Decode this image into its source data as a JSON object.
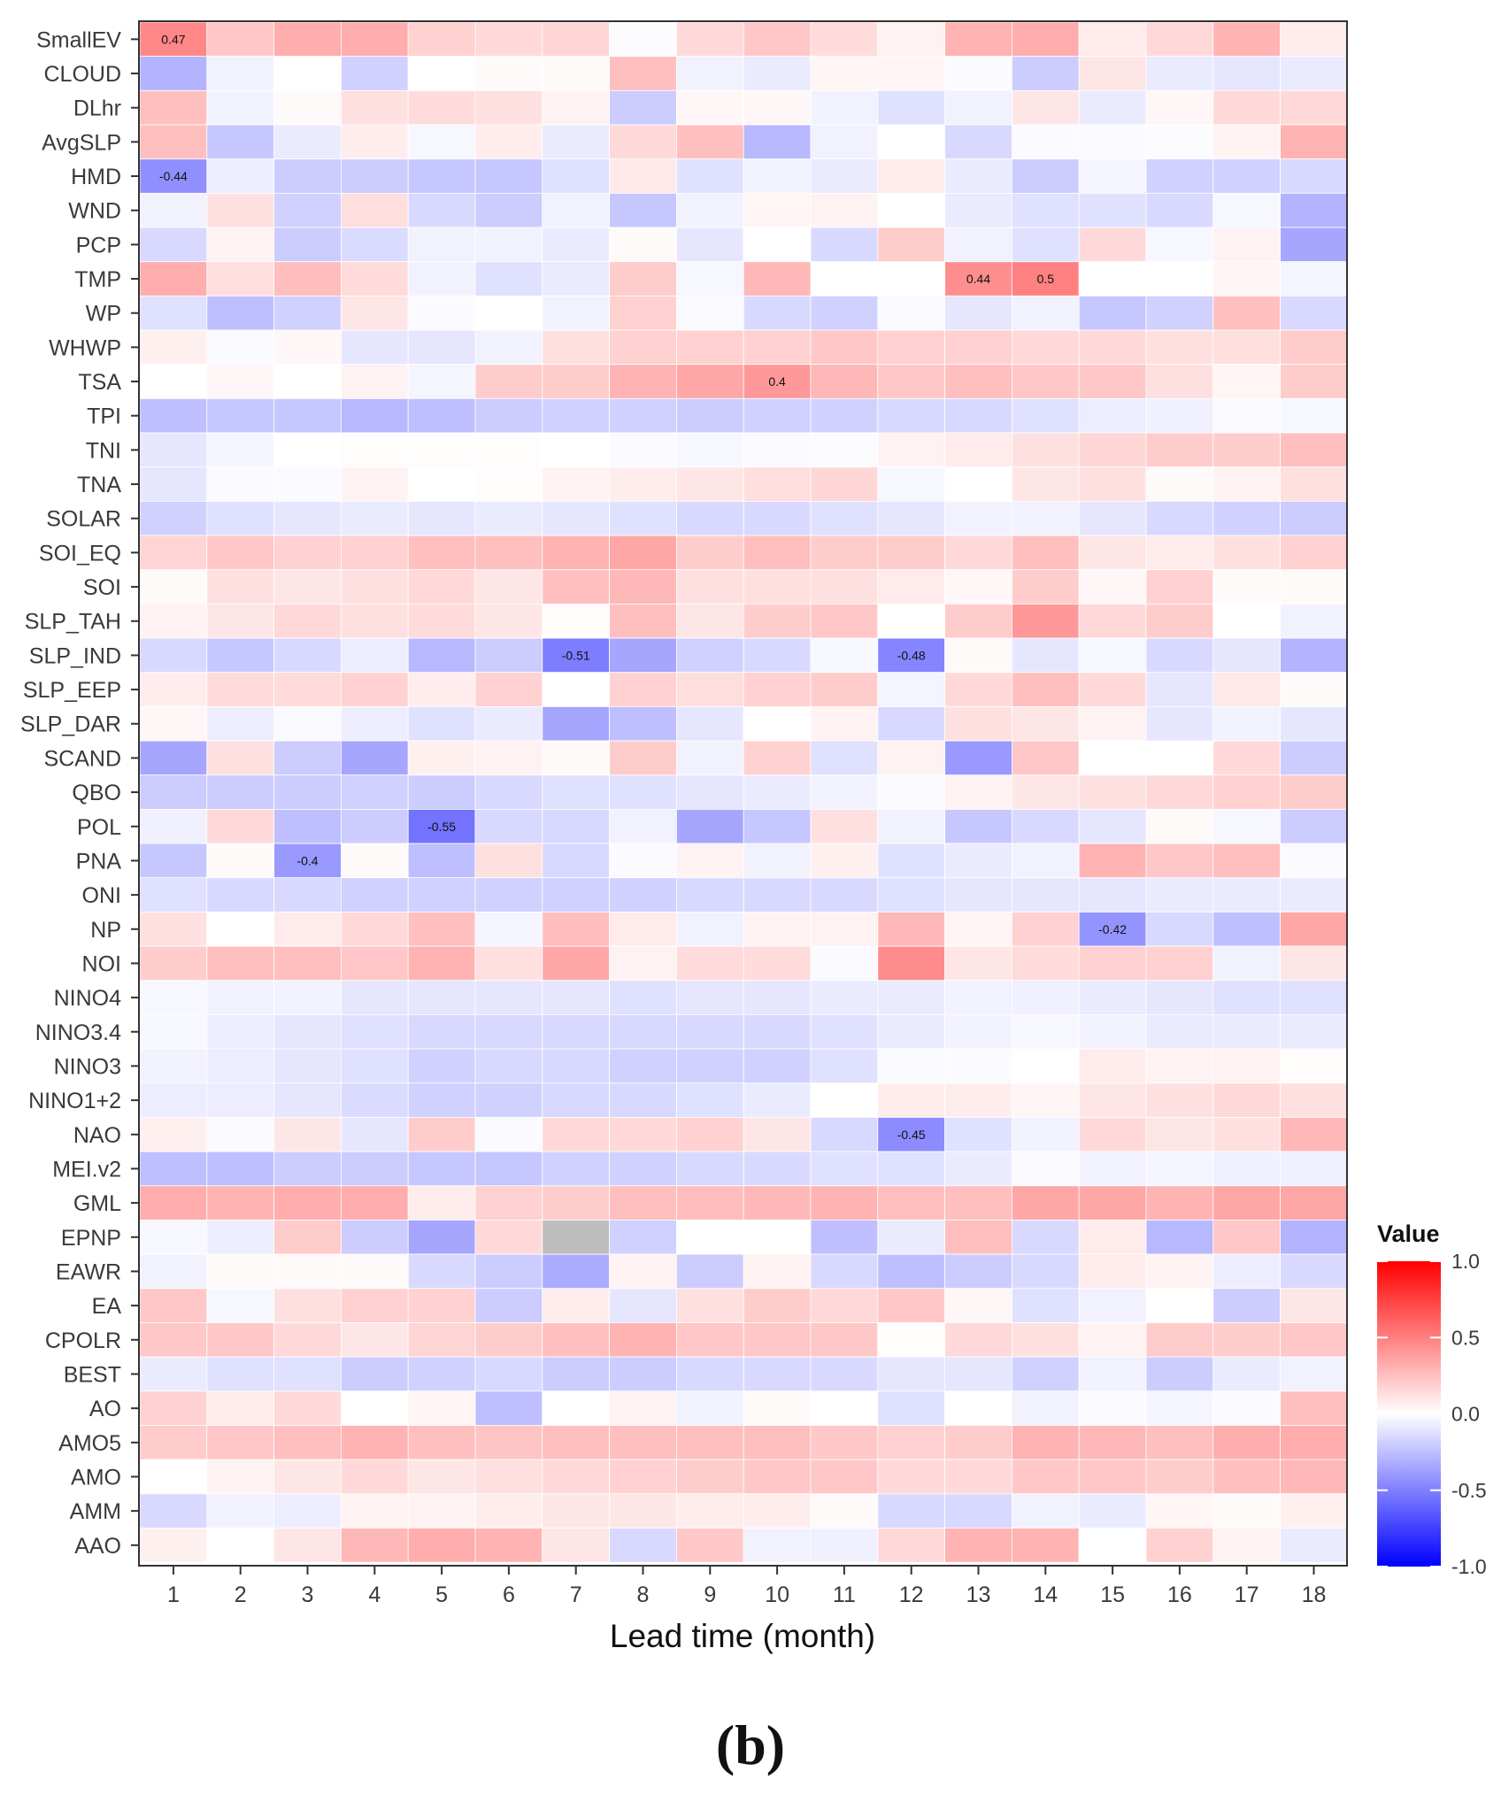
{
  "panel_label": "(b)",
  "chart_data": {
    "type": "heatmap",
    "title": "",
    "xlabel": "Lead time (month)",
    "ylabel": "",
    "x": [
      1,
      2,
      3,
      4,
      5,
      6,
      7,
      8,
      9,
      10,
      11,
      12,
      13,
      14,
      15,
      16,
      17,
      18
    ],
    "rows": [
      "SmallEV",
      "CLOUD",
      "DLhr",
      "AvgSLP",
      "HMD",
      "WND",
      "PCP",
      "TMP",
      "WP",
      "WHWP",
      "TSA",
      "TPI",
      "TNI",
      "TNA",
      "SOLAR",
      "SOI_EQ",
      "SOI",
      "SLP_TAH",
      "SLP_IND",
      "SLP_EEP",
      "SLP_DAR",
      "SCAND",
      "QBO",
      "POL",
      "PNA",
      "ONI",
      "NP",
      "NOI",
      "NINO4",
      "NINO3.4",
      "NINO3",
      "NINO1+2",
      "NAO",
      "MEI.v2",
      "GML",
      "EPNP",
      "EAWR",
      "EA",
      "CPOLR",
      "BEST",
      "AO",
      "AMO5",
      "AMO",
      "AMM",
      "AAO"
    ],
    "values": [
      [
        0.47,
        0.22,
        0.32,
        0.32,
        0.18,
        0.15,
        0.16,
        -0.01,
        0.15,
        0.22,
        0.14,
        0.05,
        0.3,
        0.32,
        0.08,
        0.15,
        0.3,
        0.07
      ],
      [
        -0.3,
        -0.05,
        0.0,
        -0.18,
        0.0,
        0.02,
        0.02,
        0.25,
        -0.05,
        -0.08,
        0.04,
        0.04,
        -0.02,
        -0.2,
        0.1,
        -0.08,
        -0.1,
        -0.08
      ],
      [
        0.25,
        -0.05,
        0.02,
        0.12,
        0.14,
        0.12,
        0.05,
        -0.2,
        0.03,
        0.03,
        -0.05,
        -0.12,
        -0.05,
        0.1,
        -0.08,
        0.03,
        0.15,
        0.15
      ],
      [
        0.25,
        -0.22,
        -0.08,
        0.07,
        -0.03,
        0.07,
        -0.08,
        0.15,
        0.25,
        -0.28,
        -0.05,
        0.0,
        -0.15,
        -0.02,
        -0.02,
        -0.01,
        0.05,
        0.3
      ],
      [
        -0.44,
        -0.07,
        -0.2,
        -0.2,
        -0.22,
        -0.22,
        -0.12,
        0.09,
        -0.12,
        -0.05,
        -0.08,
        0.08,
        -0.08,
        -0.2,
        -0.04,
        -0.18,
        -0.18,
        -0.15
      ],
      [
        -0.05,
        0.12,
        -0.18,
        0.13,
        -0.15,
        -0.2,
        -0.05,
        -0.22,
        -0.05,
        0.04,
        0.05,
        0.0,
        -0.08,
        -0.12,
        -0.12,
        -0.15,
        -0.03,
        -0.3
      ],
      [
        -0.15,
        0.05,
        -0.2,
        -0.14,
        -0.05,
        -0.05,
        -0.08,
        0.02,
        -0.1,
        0.0,
        -0.15,
        0.2,
        -0.05,
        -0.12,
        0.15,
        -0.03,
        0.05,
        -0.35
      ],
      [
        0.32,
        0.13,
        0.26,
        0.14,
        -0.05,
        -0.12,
        -0.08,
        0.2,
        -0.03,
        0.28,
        0.0,
        0.0,
        0.44,
        0.5,
        0.0,
        0.0,
        0.04,
        -0.04
      ],
      [
        -0.12,
        -0.25,
        -0.18,
        0.1,
        -0.02,
        0.0,
        -0.05,
        0.18,
        -0.02,
        -0.15,
        -0.18,
        -0.02,
        -0.1,
        -0.05,
        -0.22,
        -0.18,
        0.25,
        -0.15
      ],
      [
        0.06,
        -0.02,
        0.03,
        -0.1,
        -0.1,
        -0.05,
        0.12,
        0.18,
        0.18,
        0.18,
        0.22,
        0.18,
        0.18,
        0.15,
        0.15,
        0.12,
        0.13,
        0.2
      ],
      [
        0.0,
        0.03,
        0.0,
        0.05,
        -0.04,
        0.2,
        0.2,
        0.3,
        0.35,
        0.4,
        0.28,
        0.22,
        0.25,
        0.22,
        0.22,
        0.12,
        0.04,
        0.2
      ],
      [
        -0.25,
        -0.22,
        -0.22,
        -0.28,
        -0.25,
        -0.2,
        -0.18,
        -0.18,
        -0.2,
        -0.18,
        -0.18,
        -0.15,
        -0.15,
        -0.12,
        -0.07,
        -0.06,
        -0.02,
        -0.03
      ],
      [
        -0.1,
        -0.04,
        0.0,
        0.01,
        0.01,
        0.01,
        0.0,
        -0.02,
        -0.03,
        -0.02,
        -0.01,
        0.05,
        0.08,
        0.12,
        0.16,
        0.2,
        0.2,
        0.25
      ],
      [
        -0.1,
        -0.02,
        -0.02,
        0.05,
        0.0,
        0.01,
        0.05,
        0.07,
        0.1,
        0.13,
        0.16,
        -0.03,
        0.0,
        0.1,
        0.12,
        0.02,
        0.05,
        0.12
      ],
      [
        -0.18,
        -0.12,
        -0.1,
        -0.08,
        -0.1,
        -0.08,
        -0.1,
        -0.12,
        -0.15,
        -0.15,
        -0.12,
        -0.1,
        -0.05,
        -0.05,
        -0.1,
        -0.15,
        -0.18,
        -0.2
      ],
      [
        0.17,
        0.22,
        0.18,
        0.18,
        0.25,
        0.25,
        0.3,
        0.35,
        0.2,
        0.25,
        0.2,
        0.2,
        0.15,
        0.25,
        0.1,
        0.08,
        0.12,
        0.18
      ],
      [
        0.02,
        0.12,
        0.1,
        0.12,
        0.15,
        0.1,
        0.25,
        0.28,
        0.12,
        0.12,
        0.12,
        0.08,
        0.03,
        0.2,
        0.03,
        0.18,
        0.02,
        0.02
      ],
      [
        0.05,
        0.1,
        0.15,
        0.12,
        0.14,
        0.1,
        0.01,
        0.25,
        0.1,
        0.2,
        0.22,
        0.0,
        0.2,
        0.4,
        0.15,
        0.2,
        0.0,
        -0.05
      ],
      [
        -0.15,
        -0.22,
        -0.15,
        -0.07,
        -0.28,
        -0.2,
        -0.51,
        -0.35,
        -0.18,
        -0.15,
        -0.03,
        -0.48,
        0.02,
        -0.1,
        -0.03,
        -0.15,
        -0.1,
        -0.3
      ],
      [
        0.07,
        0.14,
        0.14,
        0.18,
        0.07,
        0.18,
        0.0,
        0.18,
        0.13,
        0.18,
        0.2,
        -0.04,
        0.15,
        0.25,
        0.15,
        -0.1,
        0.09,
        0.02
      ],
      [
        0.03,
        -0.07,
        -0.02,
        -0.07,
        -0.12,
        -0.08,
        -0.35,
        -0.25,
        -0.1,
        0.0,
        0.05,
        -0.15,
        0.12,
        0.1,
        0.05,
        -0.1,
        -0.05,
        -0.1
      ],
      [
        -0.35,
        0.12,
        -0.2,
        -0.35,
        0.06,
        0.05,
        0.02,
        0.2,
        -0.05,
        0.18,
        -0.12,
        0.05,
        -0.4,
        0.22,
        0.0,
        0.0,
        0.15,
        -0.2
      ],
      [
        -0.2,
        -0.2,
        -0.2,
        -0.18,
        -0.2,
        -0.15,
        -0.12,
        -0.12,
        -0.1,
        -0.08,
        -0.05,
        -0.02,
        0.05,
        0.1,
        0.12,
        0.15,
        0.18,
        0.2
      ],
      [
        -0.06,
        0.15,
        -0.25,
        -0.2,
        -0.55,
        -0.15,
        -0.15,
        -0.05,
        -0.35,
        -0.22,
        0.12,
        -0.05,
        -0.22,
        -0.15,
        -0.1,
        0.02,
        -0.03,
        -0.2
      ],
      [
        -0.22,
        0.02,
        -0.4,
        0.02,
        -0.25,
        0.12,
        -0.15,
        -0.02,
        0.05,
        -0.05,
        0.06,
        -0.12,
        -0.08,
        -0.05,
        0.3,
        0.22,
        0.25,
        -0.02
      ],
      [
        -0.12,
        -0.15,
        -0.15,
        -0.18,
        -0.18,
        -0.18,
        -0.18,
        -0.18,
        -0.15,
        -0.15,
        -0.15,
        -0.12,
        -0.1,
        -0.1,
        -0.1,
        -0.08,
        -0.08,
        -0.08
      ],
      [
        0.12,
        0.0,
        0.08,
        0.15,
        0.25,
        -0.04,
        0.26,
        0.08,
        -0.05,
        0.05,
        0.05,
        0.28,
        0.04,
        0.18,
        -0.42,
        -0.15,
        -0.25,
        0.35
      ],
      [
        0.2,
        0.25,
        0.25,
        0.22,
        0.3,
        0.12,
        0.35,
        0.05,
        0.14,
        0.14,
        -0.02,
        0.45,
        0.1,
        0.14,
        0.18,
        0.18,
        -0.05,
        0.1
      ],
      [
        -0.03,
        -0.05,
        -0.05,
        -0.1,
        -0.1,
        -0.1,
        -0.1,
        -0.12,
        -0.1,
        -0.1,
        -0.08,
        -0.08,
        -0.05,
        -0.06,
        -0.08,
        -0.1,
        -0.12,
        -0.12
      ],
      [
        -0.03,
        -0.07,
        -0.1,
        -0.12,
        -0.15,
        -0.15,
        -0.15,
        -0.15,
        -0.15,
        -0.15,
        -0.12,
        -0.08,
        -0.05,
        -0.03,
        -0.05,
        -0.08,
        -0.08,
        -0.08
      ],
      [
        -0.05,
        -0.07,
        -0.1,
        -0.12,
        -0.18,
        -0.15,
        -0.15,
        -0.18,
        -0.18,
        -0.18,
        -0.12,
        -0.02,
        -0.02,
        0.0,
        0.08,
        0.05,
        0.05,
        0.01
      ],
      [
        -0.07,
        -0.07,
        -0.1,
        -0.14,
        -0.18,
        -0.18,
        -0.15,
        -0.15,
        -0.12,
        -0.08,
        0.0,
        0.07,
        0.07,
        0.04,
        0.1,
        0.12,
        0.15,
        0.12
      ],
      [
        0.06,
        -0.02,
        0.1,
        -0.1,
        0.2,
        -0.02,
        0.15,
        0.15,
        0.18,
        0.1,
        -0.15,
        -0.45,
        -0.12,
        -0.05,
        0.15,
        0.1,
        0.12,
        0.28
      ],
      [
        -0.25,
        -0.25,
        -0.2,
        -0.2,
        -0.22,
        -0.22,
        -0.18,
        -0.18,
        -0.15,
        -0.15,
        -0.12,
        -0.12,
        -0.08,
        -0.02,
        -0.05,
        -0.04,
        -0.06,
        -0.06
      ],
      [
        0.32,
        0.3,
        0.32,
        0.32,
        0.07,
        0.18,
        0.2,
        0.25,
        0.26,
        0.28,
        0.3,
        0.25,
        0.25,
        0.35,
        0.35,
        0.3,
        0.35,
        0.35
      ],
      [
        -0.03,
        -0.07,
        0.2,
        -0.2,
        -0.35,
        0.15,
        null,
        -0.18,
        0.0,
        0.0,
        -0.25,
        -0.08,
        0.25,
        -0.15,
        0.08,
        -0.28,
        0.22,
        -0.3
      ],
      [
        -0.05,
        0.02,
        0.02,
        0.02,
        -0.15,
        -0.2,
        -0.33,
        0.05,
        -0.2,
        0.05,
        -0.15,
        -0.25,
        -0.2,
        -0.15,
        0.08,
        0.05,
        -0.07,
        -0.15
      ],
      [
        0.22,
        -0.03,
        0.12,
        0.18,
        0.18,
        -0.2,
        0.07,
        -0.1,
        0.12,
        0.2,
        0.15,
        0.22,
        0.03,
        -0.12,
        -0.05,
        0.0,
        -0.2,
        0.1
      ],
      [
        0.22,
        0.22,
        0.15,
        0.1,
        0.17,
        0.2,
        0.25,
        0.3,
        0.22,
        0.22,
        0.22,
        0.01,
        0.15,
        0.12,
        0.05,
        0.2,
        0.2,
        0.22
      ],
      [
        -0.08,
        -0.12,
        -0.12,
        -0.2,
        -0.18,
        -0.15,
        -0.2,
        -0.2,
        -0.15,
        -0.15,
        -0.15,
        -0.1,
        -0.1,
        -0.18,
        -0.05,
        -0.2,
        -0.08,
        -0.05
      ],
      [
        0.18,
        0.07,
        0.15,
        0.0,
        0.04,
        -0.25,
        0.0,
        0.05,
        -0.05,
        0.02,
        0.0,
        -0.12,
        0.0,
        -0.05,
        -0.02,
        -0.04,
        -0.02,
        0.25
      ],
      [
        0.2,
        0.22,
        0.25,
        0.3,
        0.25,
        0.23,
        0.25,
        0.25,
        0.25,
        0.25,
        0.22,
        0.18,
        0.2,
        0.3,
        0.28,
        0.25,
        0.32,
        0.32
      ],
      [
        0.0,
        0.05,
        0.1,
        0.15,
        0.1,
        0.12,
        0.15,
        0.18,
        0.2,
        0.22,
        0.22,
        0.15,
        0.15,
        0.22,
        0.22,
        0.2,
        0.25,
        0.28
      ],
      [
        -0.15,
        -0.05,
        -0.07,
        0.05,
        0.05,
        0.07,
        0.1,
        0.1,
        0.07,
        0.07,
        0.02,
        -0.15,
        -0.15,
        -0.05,
        -0.08,
        0.04,
        0.02,
        0.06
      ],
      [
        0.06,
        0.0,
        0.1,
        0.28,
        0.32,
        0.3,
        0.1,
        -0.15,
        0.22,
        -0.05,
        -0.06,
        0.15,
        0.3,
        0.3,
        0.0,
        0.18,
        0.05,
        -0.08
      ]
    ],
    "cell_labels": [
      {
        "row": "SmallEV",
        "col": 1,
        "text": "0.47"
      },
      {
        "row": "HMD",
        "col": 1,
        "text": "-0.44"
      },
      {
        "row": "TMP",
        "col": 13,
        "text": "0.44"
      },
      {
        "row": "TMP",
        "col": 14,
        "text": "0.5"
      },
      {
        "row": "TSA",
        "col": 10,
        "text": "0.4"
      },
      {
        "row": "SLP_IND",
        "col": 7,
        "text": "-0.51"
      },
      {
        "row": "SLP_IND",
        "col": 12,
        "text": "-0.48"
      },
      {
        "row": "POL",
        "col": 5,
        "text": "-0.55"
      },
      {
        "row": "PNA",
        "col": 3,
        "text": "-0.4"
      },
      {
        "row": "NP",
        "col": 15,
        "text": "-0.42"
      },
      {
        "row": "NAO",
        "col": 12,
        "text": "-0.45"
      }
    ],
    "missing_color": "#bebebe",
    "color_scale": {
      "low": "#0000ff",
      "mid": "#ffffff",
      "high": "#ff0000",
      "limits": [
        -1.0,
        1.0
      ]
    },
    "legend": {
      "title": "Value",
      "ticks": [
        "1.0",
        "0.5",
        "0.0",
        "-0.5",
        "-1.0"
      ],
      "position": "right"
    }
  }
}
